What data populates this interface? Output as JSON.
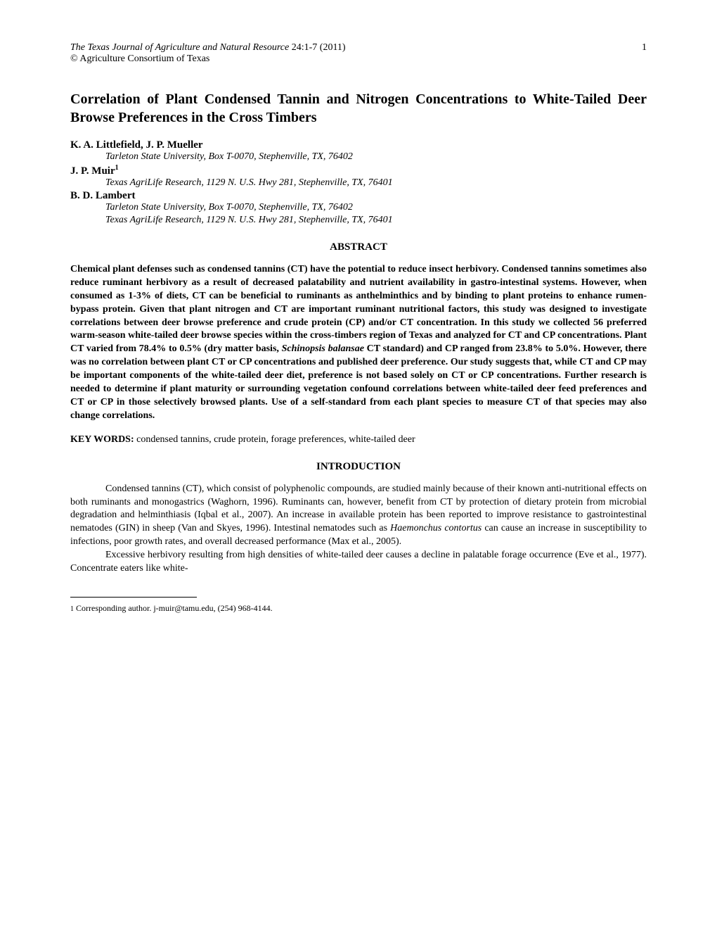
{
  "header": {
    "journal": "The Texas Journal of Agriculture and Natural Resource",
    "citation": " 24:1-7 (2011)",
    "page_number": "1",
    "copyright": "© Agriculture Consortium of Texas"
  },
  "title": "Correlation of Plant Condensed Tannin and Nitrogen Concentrations to White-Tailed Deer Browse Preferences in the Cross Timbers",
  "authors": [
    {
      "name": "K. A. Littlefield, J. P. Mueller",
      "superscript": "",
      "affiliations": [
        "Tarleton State University, Box T-0070, Stephenville, TX, 76402"
      ]
    },
    {
      "name": "J. P. Muir",
      "superscript": "1",
      "affiliations": [
        "Texas AgriLife Research, 1129 N. U.S. Hwy 281, Stephenville, TX, 76401"
      ]
    },
    {
      "name": "B. D. Lambert",
      "superscript": "",
      "affiliations": [
        "Tarleton State University, Box T-0070, Stephenville, TX, 76402",
        "Texas AgriLife Research, 1129 N. U.S. Hwy 281, Stephenville, TX, 76401"
      ]
    }
  ],
  "abstract": {
    "heading": "ABSTRACT",
    "text_pre_italic": "Chemical plant defenses such as condensed tannins (CT) have the potential to reduce insect herbivory.  Condensed tannins sometimes also reduce ruminant herbivory as a result of decreased palatability and nutrient availability in gastro-intestinal systems.  However, when consumed as 1-3% of diets, CT can be beneficial to ruminants as anthelminthics and by binding to plant proteins to enhance rumen-bypass protein.  Given that plant nitrogen and CT are important ruminant nutritional factors, this study was designed to investigate correlations between deer browse preference and crude protein (CP) and/or CT concentration.  In this study we collected 56 preferred warm-season white-tailed deer browse species within the cross-timbers region of Texas and analyzed for CT and CP concentrations.  Plant CT varied from 78.4% to 0.5% (dry matter basis, ",
    "text_italic": "Schinopsis balansae",
    "text_post_italic": " CT standard) and CP ranged from 23.8% to 5.0%.   However, there was no correlation between plant CT or CP concentrations and published deer preference.  Our study suggests that, while CT and CP may be important components of the white-tailed deer diet, preference is not based solely on CT or CP concentrations.  Further research is needed to determine if plant maturity or surrounding vegetation confound correlations between white-tailed deer feed preferences and CT or CP in those selectively browsed plants.   Use of a self-standard from each plant species to measure CT of that species may also change correlations."
  },
  "keywords": {
    "label": "KEY WORDS:",
    "text": " condensed tannins, crude protein, forage preferences, white-tailed deer"
  },
  "introduction": {
    "heading": "INTRODUCTION",
    "para1_pre": "Condensed tannins (CT), which consist of polyphenolic compounds, are studied mainly because of their known anti-nutritional effects on both ruminants and monogastrics (Waghorn, 1996).  Ruminants can, however, benefit from CT by protection of dietary protein from microbial degradation and helminthiasis (Iqbal et al., 2007).  An increase in available protein has been reported to improve resistance to gastrointestinal nematodes (GIN) in sheep (Van and Skyes, 1996).  Intestinal nematodes such as ",
    "para1_italic": "Haemonchus contortus",
    "para1_post": " can cause an increase in susceptibility to infections, poor growth rates, and overall decreased performance (Max et al., 2005).",
    "para2": "Excessive herbivory resulting from high densities of white-tailed deer causes a decline in palatable forage occurrence (Eve et al., 1977).  Concentrate eaters like white-"
  },
  "footnote": {
    "marker": "1",
    "text": " Corresponding author. j-muir@tamu.edu, (254) 968-4144."
  }
}
